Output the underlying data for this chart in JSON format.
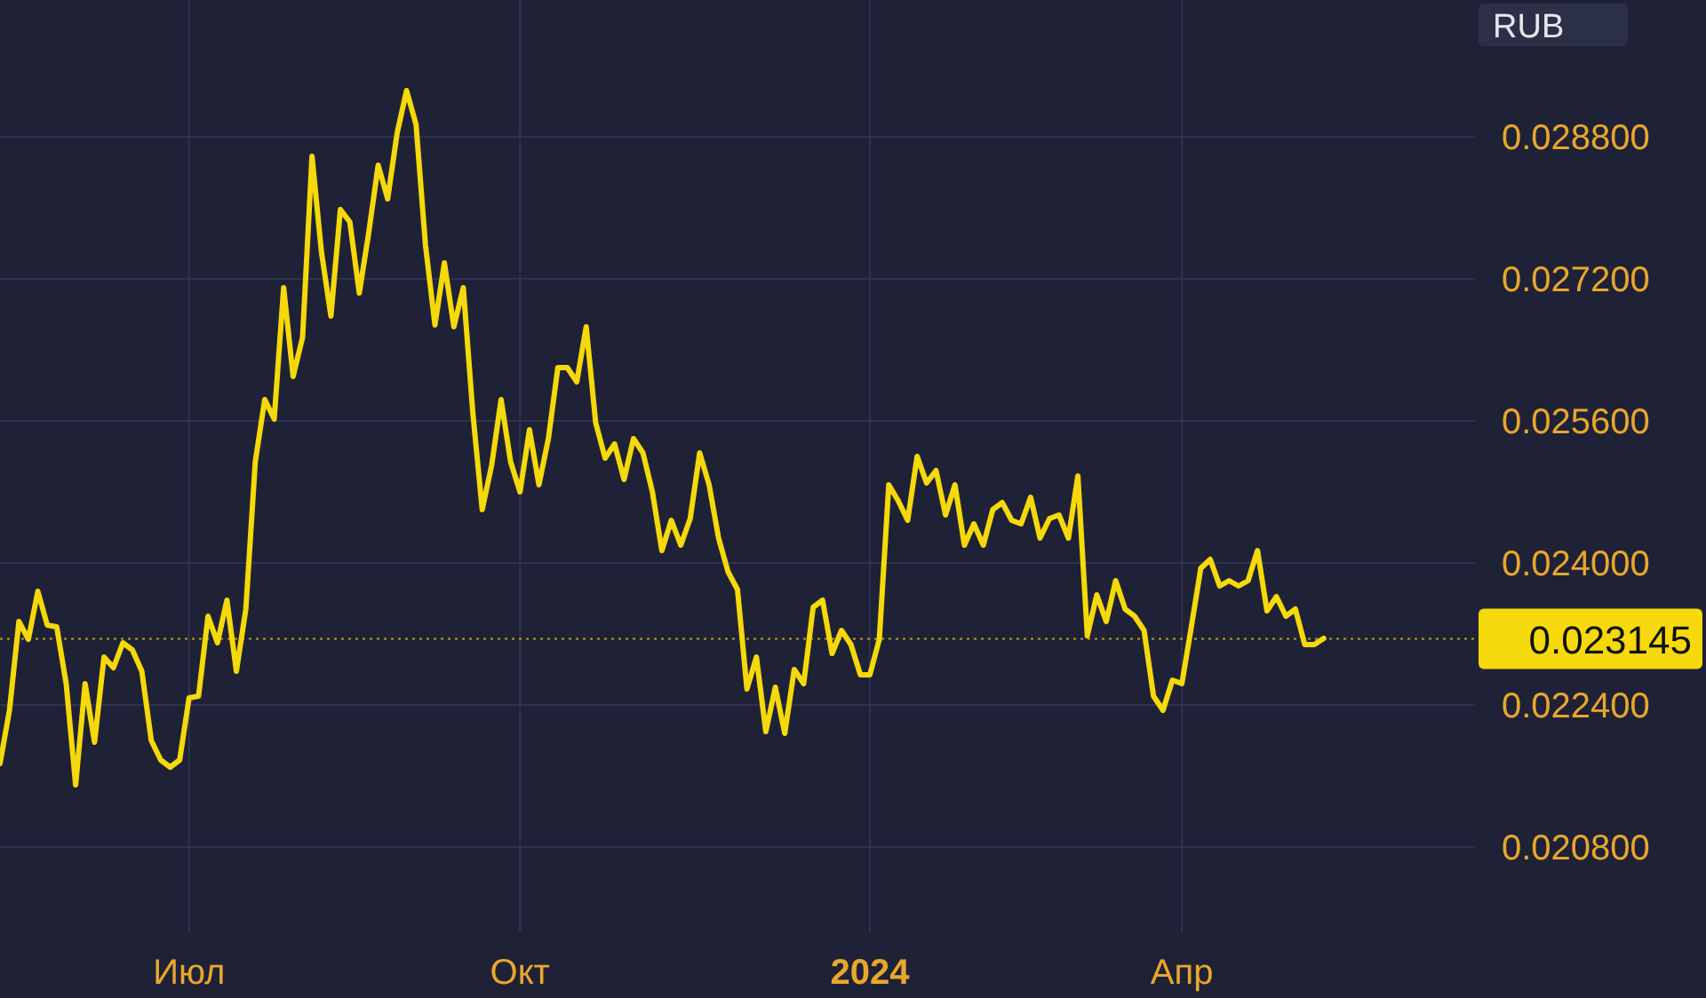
{
  "chart_data": {
    "type": "line",
    "ylabel": "RUB",
    "categories": [
      null,
      null,
      null,
      null,
      null,
      null,
      null,
      null,
      null,
      null,
      null,
      null,
      null,
      null,
      null,
      null,
      null,
      null,
      null,
      null,
      "Июл",
      null,
      null,
      null,
      null,
      null,
      null,
      null,
      null,
      null,
      null,
      null,
      null,
      null,
      null,
      null,
      null,
      null,
      null,
      null,
      null,
      null,
      null,
      null,
      null,
      null,
      null,
      null,
      null,
      null,
      null,
      null,
      null,
      null,
      null,
      "Окт",
      null,
      null,
      null,
      null,
      null,
      null,
      null,
      null,
      null,
      null,
      null,
      null,
      null,
      null,
      null,
      null,
      null,
      null,
      null,
      null,
      null,
      null,
      null,
      null,
      null,
      null,
      null,
      null,
      null,
      null,
      null,
      null,
      null,
      null,
      null,
      null,
      "2024",
      null,
      null,
      null,
      null,
      null,
      null,
      null,
      null,
      null,
      null,
      null,
      null,
      null,
      null,
      null,
      null,
      null,
      null,
      null,
      null,
      null,
      null,
      null,
      null,
      null,
      null,
      null,
      null,
      null,
      null,
      null,
      null,
      "Апр",
      null,
      null,
      null,
      null,
      null,
      null,
      null,
      null,
      null,
      null,
      null,
      null,
      null,
      null,
      null
    ],
    "series": [
      {
        "color": "#f5d90a",
        "values": [
          0.02174,
          0.02234,
          0.02334,
          0.02314,
          0.02368,
          0.0233,
          0.02328,
          0.02264,
          0.0215,
          0.02264,
          0.02198,
          0.02294,
          0.02282,
          0.0231,
          0.02302,
          0.02278,
          0.022,
          0.02178,
          0.0217,
          0.02178,
          0.02248,
          0.0225,
          0.0234,
          0.0231,
          0.02358,
          0.02278,
          0.02348,
          0.02514,
          0.02584,
          0.02562,
          0.0271,
          0.0261,
          0.02654,
          0.02858,
          0.0275,
          0.02678,
          0.02798,
          0.02784,
          0.02704,
          0.02772,
          0.02848,
          0.0281,
          0.02884,
          0.02932,
          0.02894,
          0.02758,
          0.02668,
          0.02738,
          0.02666,
          0.0271,
          0.0257,
          0.0246,
          0.0251,
          0.02584,
          0.02514,
          0.0248,
          0.0255,
          0.02488,
          0.0254,
          0.0262,
          0.0262,
          0.02604,
          0.02666,
          0.02558,
          0.02518,
          0.02534,
          0.02494,
          0.0254,
          0.02524,
          0.0248,
          0.02414,
          0.02448,
          0.0242,
          0.0245,
          0.02524,
          0.02488,
          0.02428,
          0.0239,
          0.0237,
          0.02258,
          0.02294,
          0.0221,
          0.0226,
          0.02208,
          0.0228,
          0.02264,
          0.0235,
          0.02358,
          0.02298,
          0.02324,
          0.02308,
          0.02274,
          0.02274,
          0.02314,
          0.02488,
          0.0247,
          0.02448,
          0.0252,
          0.0249,
          0.02504,
          0.02454,
          0.02488,
          0.0242,
          0.02444,
          0.0242,
          0.0246,
          0.02468,
          0.02448,
          0.02444,
          0.02474,
          0.02428,
          0.0245,
          0.02454,
          0.02428,
          0.02498,
          0.02318,
          0.02364,
          0.02334,
          0.0238,
          0.02348,
          0.0234,
          0.02324,
          0.0225,
          0.02234,
          0.02268,
          0.02264,
          0.02328,
          0.02394,
          0.02404,
          0.02374,
          0.0238,
          0.02374,
          0.0238,
          0.02414,
          0.02346,
          0.02362,
          0.0234,
          0.02348,
          0.02308,
          0.02308,
          0.02315
        ]
      }
    ],
    "ylim": [
      0.01984,
      0.03034
    ],
    "yticks": [
      {
        "value": 0.0208,
        "label": "0.020800"
      },
      {
        "value": 0.0224,
        "label": "0.022400"
      },
      {
        "value": 0.024,
        "label": "0.024000"
      },
      {
        "value": 0.0256,
        "label": "0.025600"
      },
      {
        "value": 0.0272,
        "label": "0.027200"
      },
      {
        "value": 0.0288,
        "label": "0.028800"
      }
    ],
    "grid": true,
    "ref_lines": [
      {
        "axis": "y",
        "value": 0.023145,
        "label": "0.023145",
        "color": "#f5d90a",
        "line_style": "dotted"
      }
    ]
  }
}
